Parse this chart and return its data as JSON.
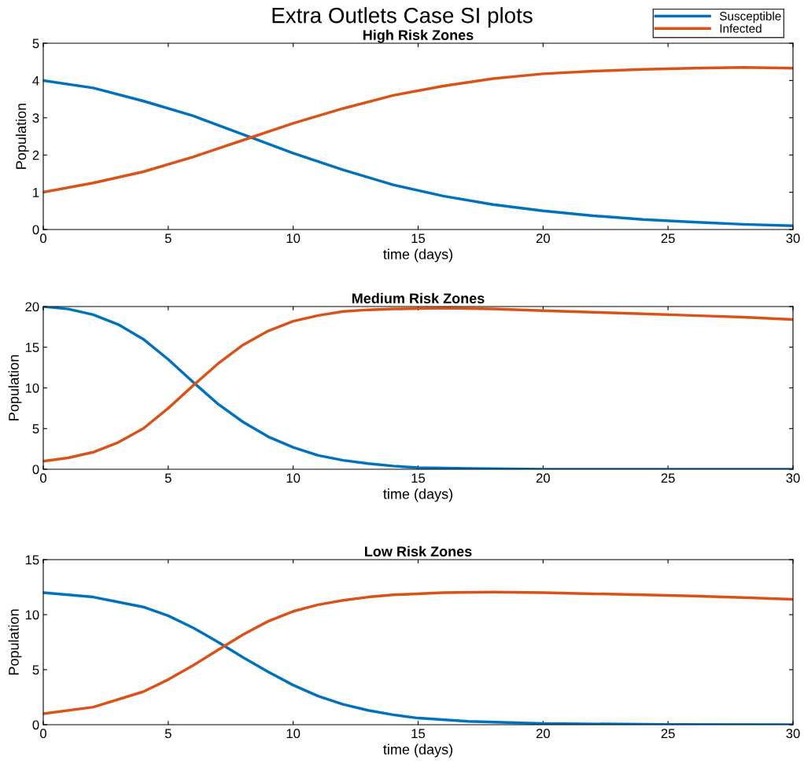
{
  "chart_data": [
    {
      "type": "line",
      "title": "Extra Outlets Case SI plots",
      "subtitle": "High Risk Zones",
      "xlabel": "time (days)",
      "ylabel": "Population",
      "xlim": [
        0,
        30
      ],
      "xticks": [
        0,
        5,
        10,
        15,
        20,
        25,
        30
      ],
      "ylim": [
        0,
        5
      ],
      "yticks": [
        0,
        1,
        2,
        3,
        4,
        5
      ],
      "legend": "top right",
      "grid": false,
      "series": [
        {
          "name": "Susceptible",
          "color": "#0072bd",
          "x": [
            0,
            2,
            4,
            6,
            8,
            10,
            12,
            14,
            16,
            18,
            20,
            22,
            24,
            26,
            28,
            30
          ],
          "values": [
            4.0,
            3.8,
            3.45,
            3.05,
            2.55,
            2.05,
            1.6,
            1.2,
            0.9,
            0.67,
            0.5,
            0.37,
            0.27,
            0.2,
            0.14,
            0.1
          ]
        },
        {
          "name": "Infected",
          "color": "#d95319",
          "x": [
            0,
            2,
            4,
            6,
            8,
            10,
            12,
            14,
            16,
            18,
            20,
            22,
            24,
            26,
            28,
            30
          ],
          "values": [
            1.0,
            1.25,
            1.55,
            1.95,
            2.4,
            2.85,
            3.25,
            3.6,
            3.85,
            4.05,
            4.18,
            4.25,
            4.3,
            4.33,
            4.35,
            4.33
          ]
        }
      ]
    },
    {
      "type": "line",
      "title": "Medium Risk Zones",
      "xlabel": "time (days)",
      "ylabel": "Population",
      "xlim": [
        0,
        30
      ],
      "xticks": [
        0,
        5,
        10,
        15,
        20,
        25,
        30
      ],
      "ylim": [
        0,
        20
      ],
      "yticks": [
        0,
        5,
        10,
        15,
        20
      ],
      "grid": false,
      "series": [
        {
          "color": "#0072bd",
          "x": [
            0,
            1,
            2,
            3,
            4,
            5,
            6,
            7,
            8,
            9,
            10,
            11,
            12,
            13,
            14,
            15,
            17,
            20,
            25,
            30
          ],
          "values": [
            20,
            19.7,
            19,
            17.8,
            16,
            13.5,
            10.7,
            8,
            5.8,
            4,
            2.7,
            1.7,
            1.1,
            0.7,
            0.4,
            0.2,
            0.1,
            0,
            0,
            0
          ]
        },
        {
          "color": "#d95319",
          "x": [
            0,
            1,
            2,
            3,
            4,
            5,
            6,
            7,
            8,
            9,
            10,
            11,
            12,
            13,
            14,
            16,
            18,
            20,
            22,
            24,
            26,
            28,
            30
          ],
          "values": [
            1,
            1.4,
            2.1,
            3.3,
            5,
            7.5,
            10.3,
            13,
            15.3,
            17,
            18.2,
            18.9,
            19.4,
            19.6,
            19.7,
            19.8,
            19.7,
            19.5,
            19.3,
            19.1,
            18.9,
            18.7,
            18.4
          ]
        }
      ]
    },
    {
      "type": "line",
      "title": "Low Risk Zones",
      "xlabel": "time (days)",
      "ylabel": "Population",
      "xlim": [
        0,
        30
      ],
      "xticks": [
        0,
        5,
        10,
        15,
        20,
        25,
        30
      ],
      "ylim": [
        0,
        15
      ],
      "yticks": [
        0,
        5,
        10,
        15
      ],
      "grid": false,
      "series": [
        {
          "color": "#0072bd",
          "x": [
            0,
            2,
            4,
            5,
            6,
            7,
            8,
            9,
            10,
            11,
            12,
            13,
            14,
            15,
            17,
            20,
            25,
            30
          ],
          "values": [
            12,
            11.6,
            10.7,
            9.9,
            8.8,
            7.5,
            6.1,
            4.8,
            3.6,
            2.6,
            1.85,
            1.3,
            0.9,
            0.6,
            0.3,
            0.1,
            0.02,
            0
          ]
        },
        {
          "color": "#d95319",
          "x": [
            0,
            2,
            4,
            5,
            6,
            7,
            8,
            9,
            10,
            11,
            12,
            13,
            14,
            16,
            18,
            20,
            22,
            24,
            26,
            28,
            30
          ],
          "values": [
            1,
            1.6,
            3.0,
            4.1,
            5.4,
            6.8,
            8.2,
            9.4,
            10.3,
            10.9,
            11.3,
            11.6,
            11.8,
            12.0,
            12.05,
            12.0,
            11.9,
            11.8,
            11.7,
            11.55,
            11.4
          ]
        }
      ]
    }
  ]
}
